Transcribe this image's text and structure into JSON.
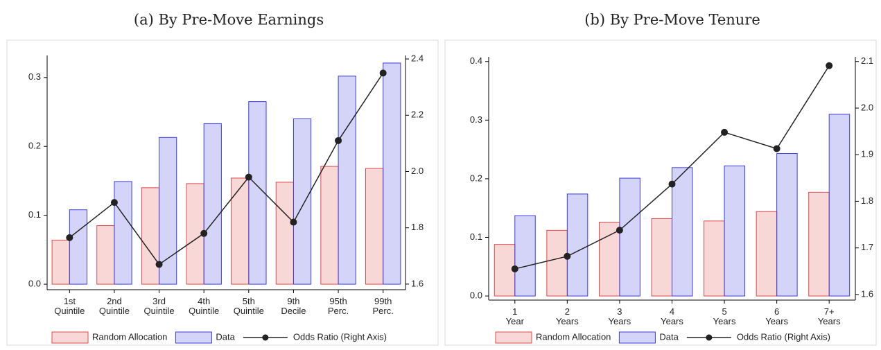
{
  "chart_data": [
    {
      "type": "bar-line",
      "title": "(a) By Pre-Move Earnings",
      "categories": [
        "1st Quintile",
        "2nd Quintile",
        "3rd Quintile",
        "4th Quintile",
        "5th Quintile",
        "9th Decile",
        "95th Perc.",
        "99th Perc."
      ],
      "series": [
        {
          "name": "Random Allocation",
          "color": "#e04848",
          "values": [
            0.064,
            0.085,
            0.14,
            0.146,
            0.154,
            0.148,
            0.171,
            0.168
          ]
        },
        {
          "name": "Data",
          "color": "#3a3ae0",
          "values": [
            0.108,
            0.149,
            0.213,
            0.233,
            0.265,
            0.24,
            0.302,
            0.321
          ]
        },
        {
          "name": "Odds Ratio (Right Axis)",
          "color": "#222222",
          "axis": "y2",
          "values": [
            1.765,
            1.89,
            1.67,
            1.78,
            1.98,
            1.82,
            2.11,
            2.35
          ]
        }
      ],
      "ylim": [
        -0.008,
        0.332
      ],
      "yticks": [
        {
          "value": 0,
          "label": "0.0"
        },
        0.1,
        0.2,
        0.3
      ],
      "y2lim": [
        1.58,
        2.4125
      ],
      "y2ticks": [
        1.6,
        1.8,
        {
          "value": 2,
          "label": "2.0"
        },
        2.2,
        2.4
      ]
    },
    {
      "type": "bar-line",
      "title": "(b) By Pre-Move Tenure",
      "categories": [
        "1 Year",
        "2 Years",
        "3 Years",
        "4 Years",
        "5 Years",
        "6 Years",
        "7+ Years"
      ],
      "series": [
        {
          "name": "Random Allocation",
          "color": "#e04848",
          "values": [
            0.088,
            0.112,
            0.126,
            0.132,
            0.128,
            0.144,
            0.177
          ]
        },
        {
          "name": "Data",
          "color": "#3a3ae0",
          "values": [
            0.137,
            0.174,
            0.201,
            0.219,
            0.222,
            0.243,
            0.31
          ]
        },
        {
          "name": "Odds Ratio (Right Axis)",
          "color": "#222222",
          "axis": "y2",
          "values": [
            1.655,
            1.682,
            1.738,
            1.837,
            1.948,
            1.913,
            2.091
          ]
        }
      ],
      "ylim": [
        -0.007,
        0.408
      ],
      "yticks": [
        {
          "value": 0,
          "label": "0.0"
        },
        0.1,
        0.2,
        0.3,
        0.4
      ],
      "y2lim": [
        1.588,
        2.11
      ],
      "y2ticks": [
        1.6,
        1.7,
        1.8,
        1.9,
        {
          "value": 2,
          "label": "2.0"
        },
        2.1
      ]
    }
  ]
}
